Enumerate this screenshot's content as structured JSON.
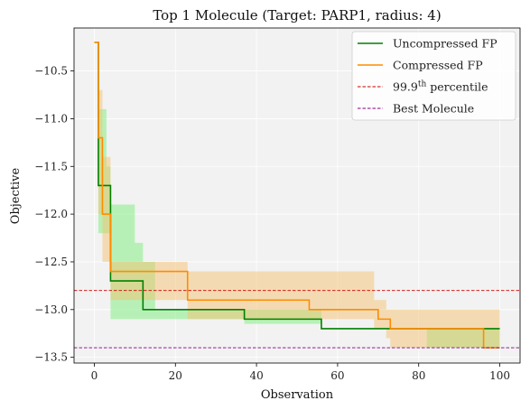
{
  "chart_data": {
    "type": "line",
    "title": "Top 1 Molecule (Target: PARP1, radius: 4)",
    "xlabel": "Observation",
    "ylabel": "Objective",
    "xlim": [
      -5,
      105
    ],
    "ylim": [
      -13.56,
      -10.05
    ],
    "xticks": [
      0,
      20,
      40,
      60,
      80,
      100
    ],
    "yticks": [
      -10.5,
      -11.0,
      -11.5,
      -12.0,
      -12.5,
      -13.0,
      -13.5
    ],
    "ytick_labels": [
      "−10.5",
      "−11.0",
      "−11.5",
      "−12.0",
      "−12.5",
      "−13.0",
      "−13.5"
    ],
    "grid": true,
    "legend_position": "top-right",
    "series": [
      {
        "name": "Uncompressed FP",
        "color": "#008000",
        "x": [
          0,
          1,
          3,
          4,
          12,
          37,
          56,
          72,
          100
        ],
        "y": [
          -10.2,
          -11.7,
          -11.7,
          -12.7,
          -13.0,
          -13.1,
          -13.2,
          -13.2,
          -13.2
        ],
        "band_x": [
          0,
          1,
          3,
          4,
          10,
          12,
          15,
          37,
          56,
          82,
          86,
          100
        ],
        "band_lower": [
          -10.2,
          -12.2,
          -12.2,
          -13.1,
          -13.1,
          -13.1,
          -13.1,
          -13.15,
          -13.2,
          -13.4,
          -13.4,
          -13.4
        ],
        "band_upper": [
          -10.2,
          -10.9,
          -11.5,
          -11.9,
          -12.3,
          -12.5,
          -13.0,
          -13.0,
          -13.2,
          -13.2,
          -13.2,
          -13.0
        ]
      },
      {
        "name": "Compressed FP",
        "color": "#ff8c00",
        "x": [
          0,
          1,
          2,
          4,
          22,
          23,
          52,
          53,
          69,
          70,
          72,
          73,
          95,
          96,
          100
        ],
        "y": [
          -10.2,
          -11.2,
          -12.0,
          -12.6,
          -12.6,
          -12.9,
          -12.9,
          -13.0,
          -13.0,
          -13.1,
          -13.1,
          -13.2,
          -13.2,
          -13.4,
          -13.4
        ],
        "band_x": [
          0,
          1,
          2,
          4,
          22,
          23,
          52,
          62,
          69,
          72,
          73,
          95,
          96,
          100
        ],
        "band_lower": [
          -10.2,
          -12.0,
          -12.5,
          -12.9,
          -12.9,
          -13.1,
          -13.1,
          -13.1,
          -13.2,
          -13.3,
          -13.4,
          -13.4,
          -13.4,
          -13.4
        ],
        "band_upper": [
          -10.2,
          -10.7,
          -11.4,
          -12.5,
          -12.5,
          -12.6,
          -12.6,
          -12.6,
          -12.9,
          -13.0,
          -13.0,
          -13.0,
          -13.0,
          -13.0
        ]
      }
    ],
    "hlines": [
      {
        "name": "99.9th percentile",
        "y": -12.8,
        "color": "#cc0000",
        "style": "dashed"
      },
      {
        "name": "Best Molecule",
        "y": -13.4,
        "color": "#800080",
        "style": "dashed"
      }
    ],
    "legend": {
      "entries": [
        {
          "label": "Uncompressed FP",
          "color": "#008000",
          "style": "solid"
        },
        {
          "label": "Compressed FP",
          "color": "#ff8c00",
          "style": "solid"
        },
        {
          "label": "99.9",
          "sup": "th",
          "label_tail": " percentile",
          "color": "#cc0000",
          "style": "dashed"
        },
        {
          "label": "Best Molecule",
          "color": "#800080",
          "style": "dashed"
        }
      ]
    },
    "colors": {
      "plot_background": "#f2f2f2",
      "grid": "#ffffff",
      "green_band": "#90ee90",
      "orange_band": "#f5c171"
    }
  }
}
